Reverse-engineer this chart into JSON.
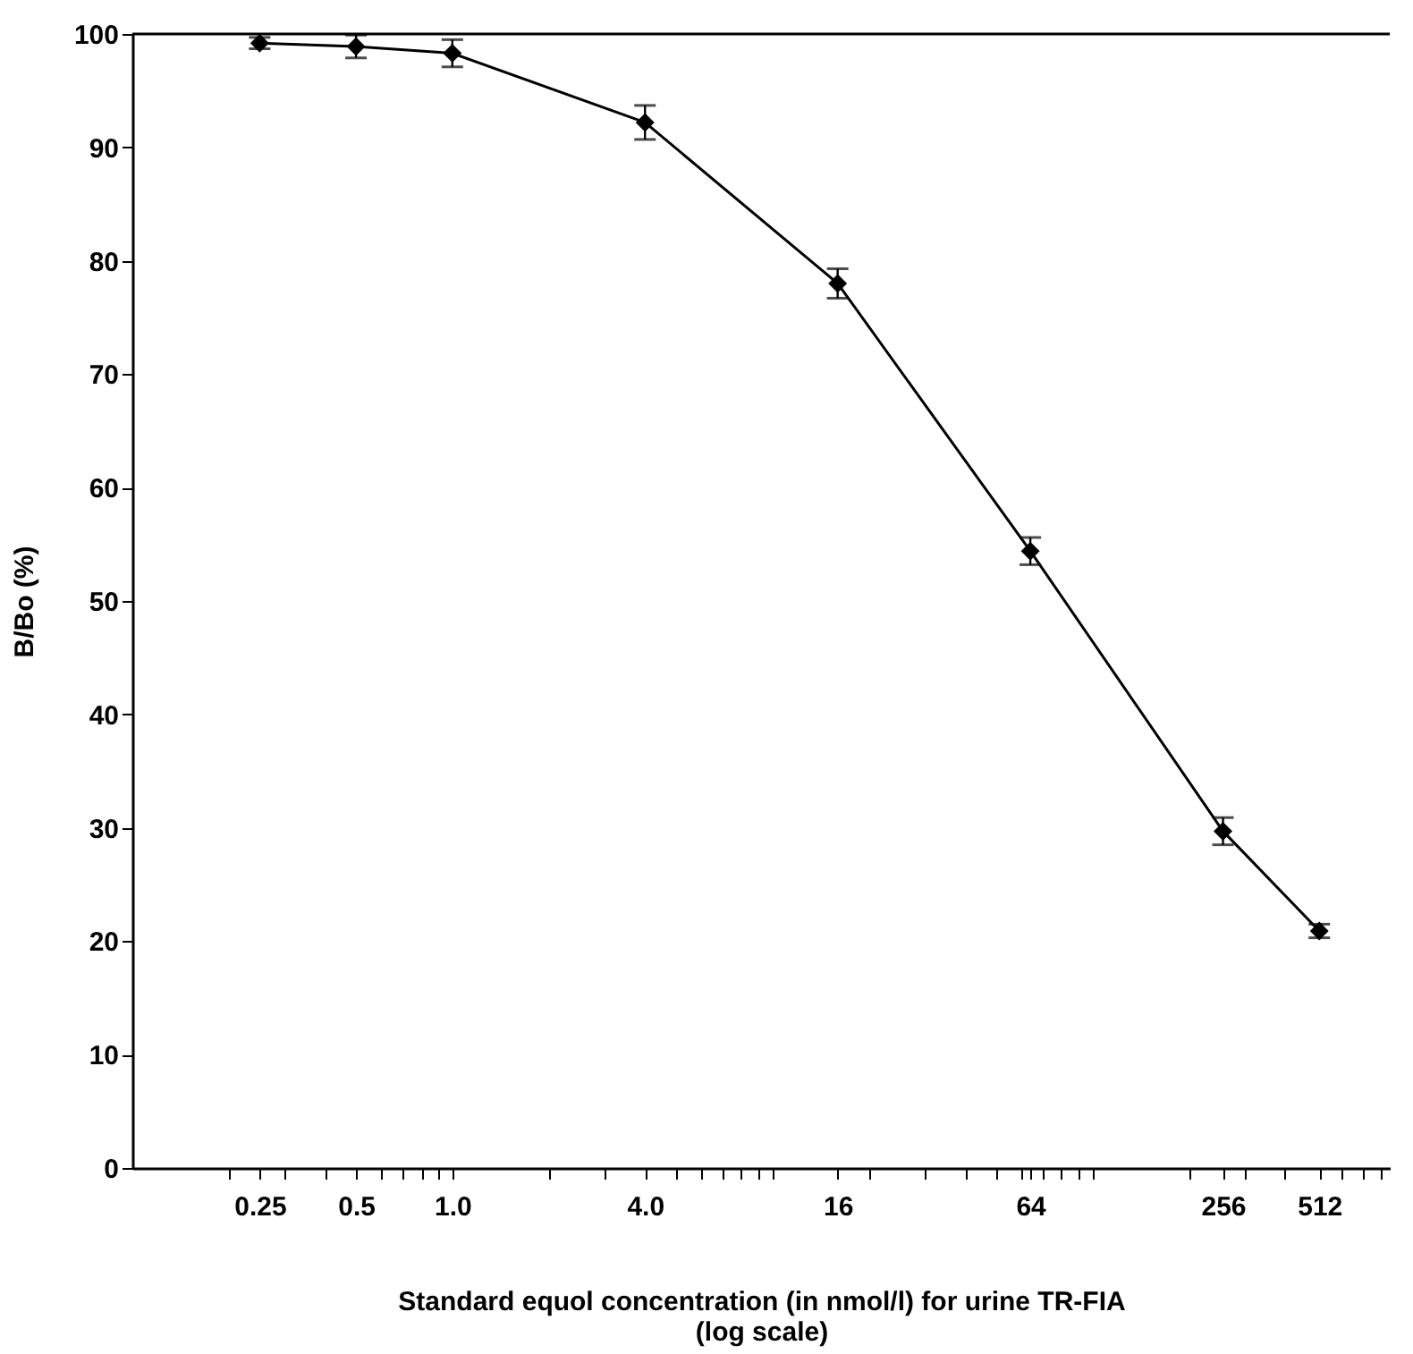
{
  "chart_data": {
    "type": "line",
    "xlabel": "Standard equol concentration (in nmol/l) for urine TR-FIA\n(log scale)",
    "ylabel": "B/Bo (%)",
    "x": [
      0.25,
      0.5,
      1,
      4,
      16,
      64,
      256,
      512
    ],
    "series": [
      {
        "color": "#000000",
        "values": [
          99.2,
          98.9,
          98.3,
          92.2,
          78.0,
          54.4,
          29.7,
          20.9
        ],
        "errors": [
          0.5,
          1.0,
          1.2,
          1.5,
          1.3,
          1.2,
          1.2,
          0.6
        ]
      }
    ],
    "log": "x",
    "marker": "diamond",
    "line_style": "solid",
    "xlim": [
      0.1,
      850
    ],
    "xticks": [
      {
        "value": 0.2,
        "label": null
      },
      {
        "value": 0.25,
        "label": "0.25"
      },
      {
        "value": 0.3,
        "label": null
      },
      {
        "value": 0.4,
        "label": null
      },
      {
        "value": 0.5,
        "label": "0.5"
      },
      {
        "value": 0.6,
        "label": null
      },
      {
        "value": 0.7,
        "label": null
      },
      {
        "value": 0.8,
        "label": null
      },
      {
        "value": 0.9,
        "label": null
      },
      {
        "value": 1,
        "label": "1.0"
      },
      {
        "value": 2,
        "label": null
      },
      {
        "value": 3,
        "label": null
      },
      {
        "value": 4,
        "label": "4.0"
      },
      {
        "value": 5,
        "label": null
      },
      {
        "value": 6,
        "label": null
      },
      {
        "value": 7,
        "label": null
      },
      {
        "value": 8,
        "label": null
      },
      {
        "value": 9,
        "label": null
      },
      {
        "value": 10,
        "label": null
      },
      {
        "value": 16,
        "label": "16"
      },
      {
        "value": 20,
        "label": null
      },
      {
        "value": 30,
        "label": null
      },
      {
        "value": 40,
        "label": null
      },
      {
        "value": 50,
        "label": null
      },
      {
        "value": 60,
        "label": null
      },
      {
        "value": 64,
        "label": "64"
      },
      {
        "value": 70,
        "label": null
      },
      {
        "value": 80,
        "label": null
      },
      {
        "value": 90,
        "label": null
      },
      {
        "value": 100,
        "label": null
      },
      {
        "value": 200,
        "label": null
      },
      {
        "value": 256,
        "label": "256"
      },
      {
        "value": 300,
        "label": null
      },
      {
        "value": 400,
        "label": null
      },
      {
        "value": 512,
        "label": "512"
      },
      {
        "value": 600,
        "label": null
      },
      {
        "value": 700,
        "label": null
      },
      {
        "value": 800,
        "label": null
      }
    ],
    "ylim": [
      0,
      100
    ],
    "yticks": [
      0,
      10,
      20,
      30,
      40,
      50,
      60,
      70,
      80,
      90,
      100
    ]
  }
}
